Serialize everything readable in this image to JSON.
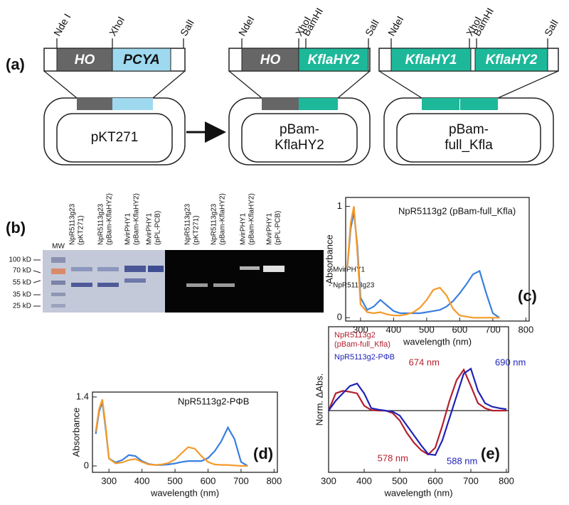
{
  "panel_labels": [
    "(a)",
    "(b)",
    "(c)",
    "(d)",
    "(e)"
  ],
  "constructs": [
    {
      "sites": [
        "Nde I",
        "XhoI",
        "SalI"
      ],
      "genes": [
        "HO",
        "PCYA"
      ],
      "plasmid": [
        "pKT271"
      ]
    },
    {
      "sites": [
        "NdeI",
        "XhoI",
        "BamHI",
        "SalI"
      ],
      "genes": [
        "HO",
        "KflaHY2"
      ],
      "plasmid": [
        "pBam-",
        "KflaHY2"
      ]
    },
    {
      "sites": [
        "NdeI",
        "XhoI",
        "BamHI",
        "SalI"
      ],
      "genes": [
        "KflaHY1",
        "KflaHY2"
      ],
      "plasmid": [
        "pBam-",
        "full_Kfla"
      ]
    }
  ],
  "gel": {
    "mw_label": "MW",
    "markers": [
      "100 kD",
      "70 kD",
      "55 kD",
      "35 kD",
      "25 kD"
    ],
    "lanes": [
      [
        "NpR5113g23",
        "(pKT271)"
      ],
      [
        "NpR5113g23",
        "(pBam-KflaHY2)"
      ],
      [
        "MvirPHY1",
        "(pBam-KflaHY2)"
      ],
      [
        "MvirPHY1",
        "(pPL-PCB)"
      ]
    ],
    "bands": [
      "- MvirPHY1",
      "- NpR5113g23"
    ]
  },
  "chart_data": [
    {
      "type": "line",
      "title": "NpR5113g2 (pBam-full_Kfla)",
      "x_label": "wavelength (nm)",
      "y_label": "Absorbance",
      "x": [
        260,
        270,
        280,
        290,
        300,
        320,
        340,
        360,
        380,
        400,
        420,
        440,
        460,
        480,
        500,
        520,
        540,
        560,
        580,
        600,
        620,
        640,
        660,
        680,
        700,
        720
      ],
      "xlim": [
        255,
        810
      ],
      "xticks": [
        300,
        400,
        500,
        600,
        700,
        800
      ],
      "ylim": [
        -0.03,
        1.08
      ],
      "yticks": [
        0,
        1
      ],
      "series": [
        {
          "color": "#3a7fe0",
          "values": [
            0.45,
            0.8,
            0.95,
            0.65,
            0.18,
            0.07,
            0.1,
            0.16,
            0.11,
            0.06,
            0.04,
            0.04,
            0.04,
            0.04,
            0.05,
            0.06,
            0.07,
            0.1,
            0.15,
            0.22,
            0.3,
            0.39,
            0.42,
            0.22,
            0.04,
            0.0
          ]
        },
        {
          "color": "#f59a2a",
          "values": [
            0.45,
            0.85,
            1.0,
            0.6,
            0.12,
            0.05,
            0.04,
            0.05,
            0.03,
            0.02,
            0.02,
            0.03,
            0.05,
            0.09,
            0.16,
            0.25,
            0.27,
            0.2,
            0.08,
            0.02,
            0.01,
            0.0,
            0.0,
            0.0,
            0.0,
            0.0
          ]
        }
      ]
    },
    {
      "type": "line",
      "title": "NpR5113g2-PΦB",
      "x_label": "wavelength (nm)",
      "y_label": "Absorbance",
      "x": [
        260,
        270,
        280,
        290,
        300,
        320,
        340,
        360,
        380,
        400,
        420,
        440,
        460,
        480,
        500,
        520,
        540,
        560,
        580,
        600,
        620,
        640,
        660,
        680,
        700,
        720
      ],
      "xlim": [
        250,
        810
      ],
      "xticks": [
        300,
        400,
        500,
        600,
        700,
        800
      ],
      "ylim": [
        -0.13,
        1.5
      ],
      "yticks": [
        0,
        1.4
      ],
      "series": [
        {
          "color": "#3a7fe0",
          "values": [
            0.65,
            1.1,
            1.3,
            0.75,
            0.15,
            0.07,
            0.12,
            0.22,
            0.2,
            0.1,
            0.04,
            0.02,
            0.02,
            0.03,
            0.05,
            0.08,
            0.1,
            0.1,
            0.1,
            0.16,
            0.3,
            0.5,
            0.78,
            0.55,
            0.08,
            0.0
          ]
        },
        {
          "color": "#f59a2a",
          "values": [
            0.7,
            1.15,
            1.35,
            0.8,
            0.15,
            0.05,
            0.07,
            0.12,
            0.14,
            0.08,
            0.03,
            0.02,
            0.03,
            0.06,
            0.13,
            0.26,
            0.38,
            0.35,
            0.2,
            0.08,
            0.03,
            0.02,
            0.02,
            0.01,
            0.0,
            0.0
          ]
        }
      ]
    },
    {
      "type": "line",
      "x_label": "wavelength (nm)",
      "y_label": "Norm. ΔAbs.",
      "x": [
        300,
        320,
        340,
        360,
        380,
        400,
        420,
        440,
        460,
        480,
        500,
        520,
        540,
        560,
        580,
        600,
        620,
        640,
        660,
        680,
        700,
        720,
        740,
        760,
        780,
        800
      ],
      "xlim": [
        300,
        806
      ],
      "xticks": [
        300,
        400,
        500,
        600,
        700,
        800
      ],
      "ylim": [
        -1.25,
        1.7
      ],
      "series": [
        {
          "name": "NpR5113g2 (pBam-full_Kfla)",
          "color": "#b3202e",
          "values": [
            0,
            0.35,
            0.4,
            0.38,
            0.35,
            0.1,
            0.01,
            0,
            0,
            -0.05,
            -0.2,
            -0.45,
            -0.65,
            -0.8,
            -0.89,
            -0.75,
            -0.3,
            0.2,
            0.62,
            0.83,
            0.5,
            0.15,
            0.05,
            0.0,
            0.0,
            0.0
          ]
        },
        {
          "name": "NpR5113g2-PΦB",
          "color": "#1f22b8",
          "values": [
            0,
            0.2,
            0.35,
            0.5,
            0.55,
            0.35,
            0.05,
            0.02,
            0,
            -0.02,
            -0.1,
            -0.3,
            -0.5,
            -0.7,
            -0.88,
            -0.9,
            -0.6,
            -0.15,
            0.3,
            0.75,
            0.85,
            0.4,
            0.15,
            0.08,
            0.05,
            0.03
          ]
        }
      ],
      "annotations": [
        {
          "text": "674 nm",
          "color": "#b3202e"
        },
        {
          "text": "690 nm",
          "color": "#1f22b8"
        },
        {
          "text": "578 nm",
          "color": "#b3202e"
        },
        {
          "text": "588 nm",
          "color": "#1f22b8"
        }
      ]
    }
  ]
}
